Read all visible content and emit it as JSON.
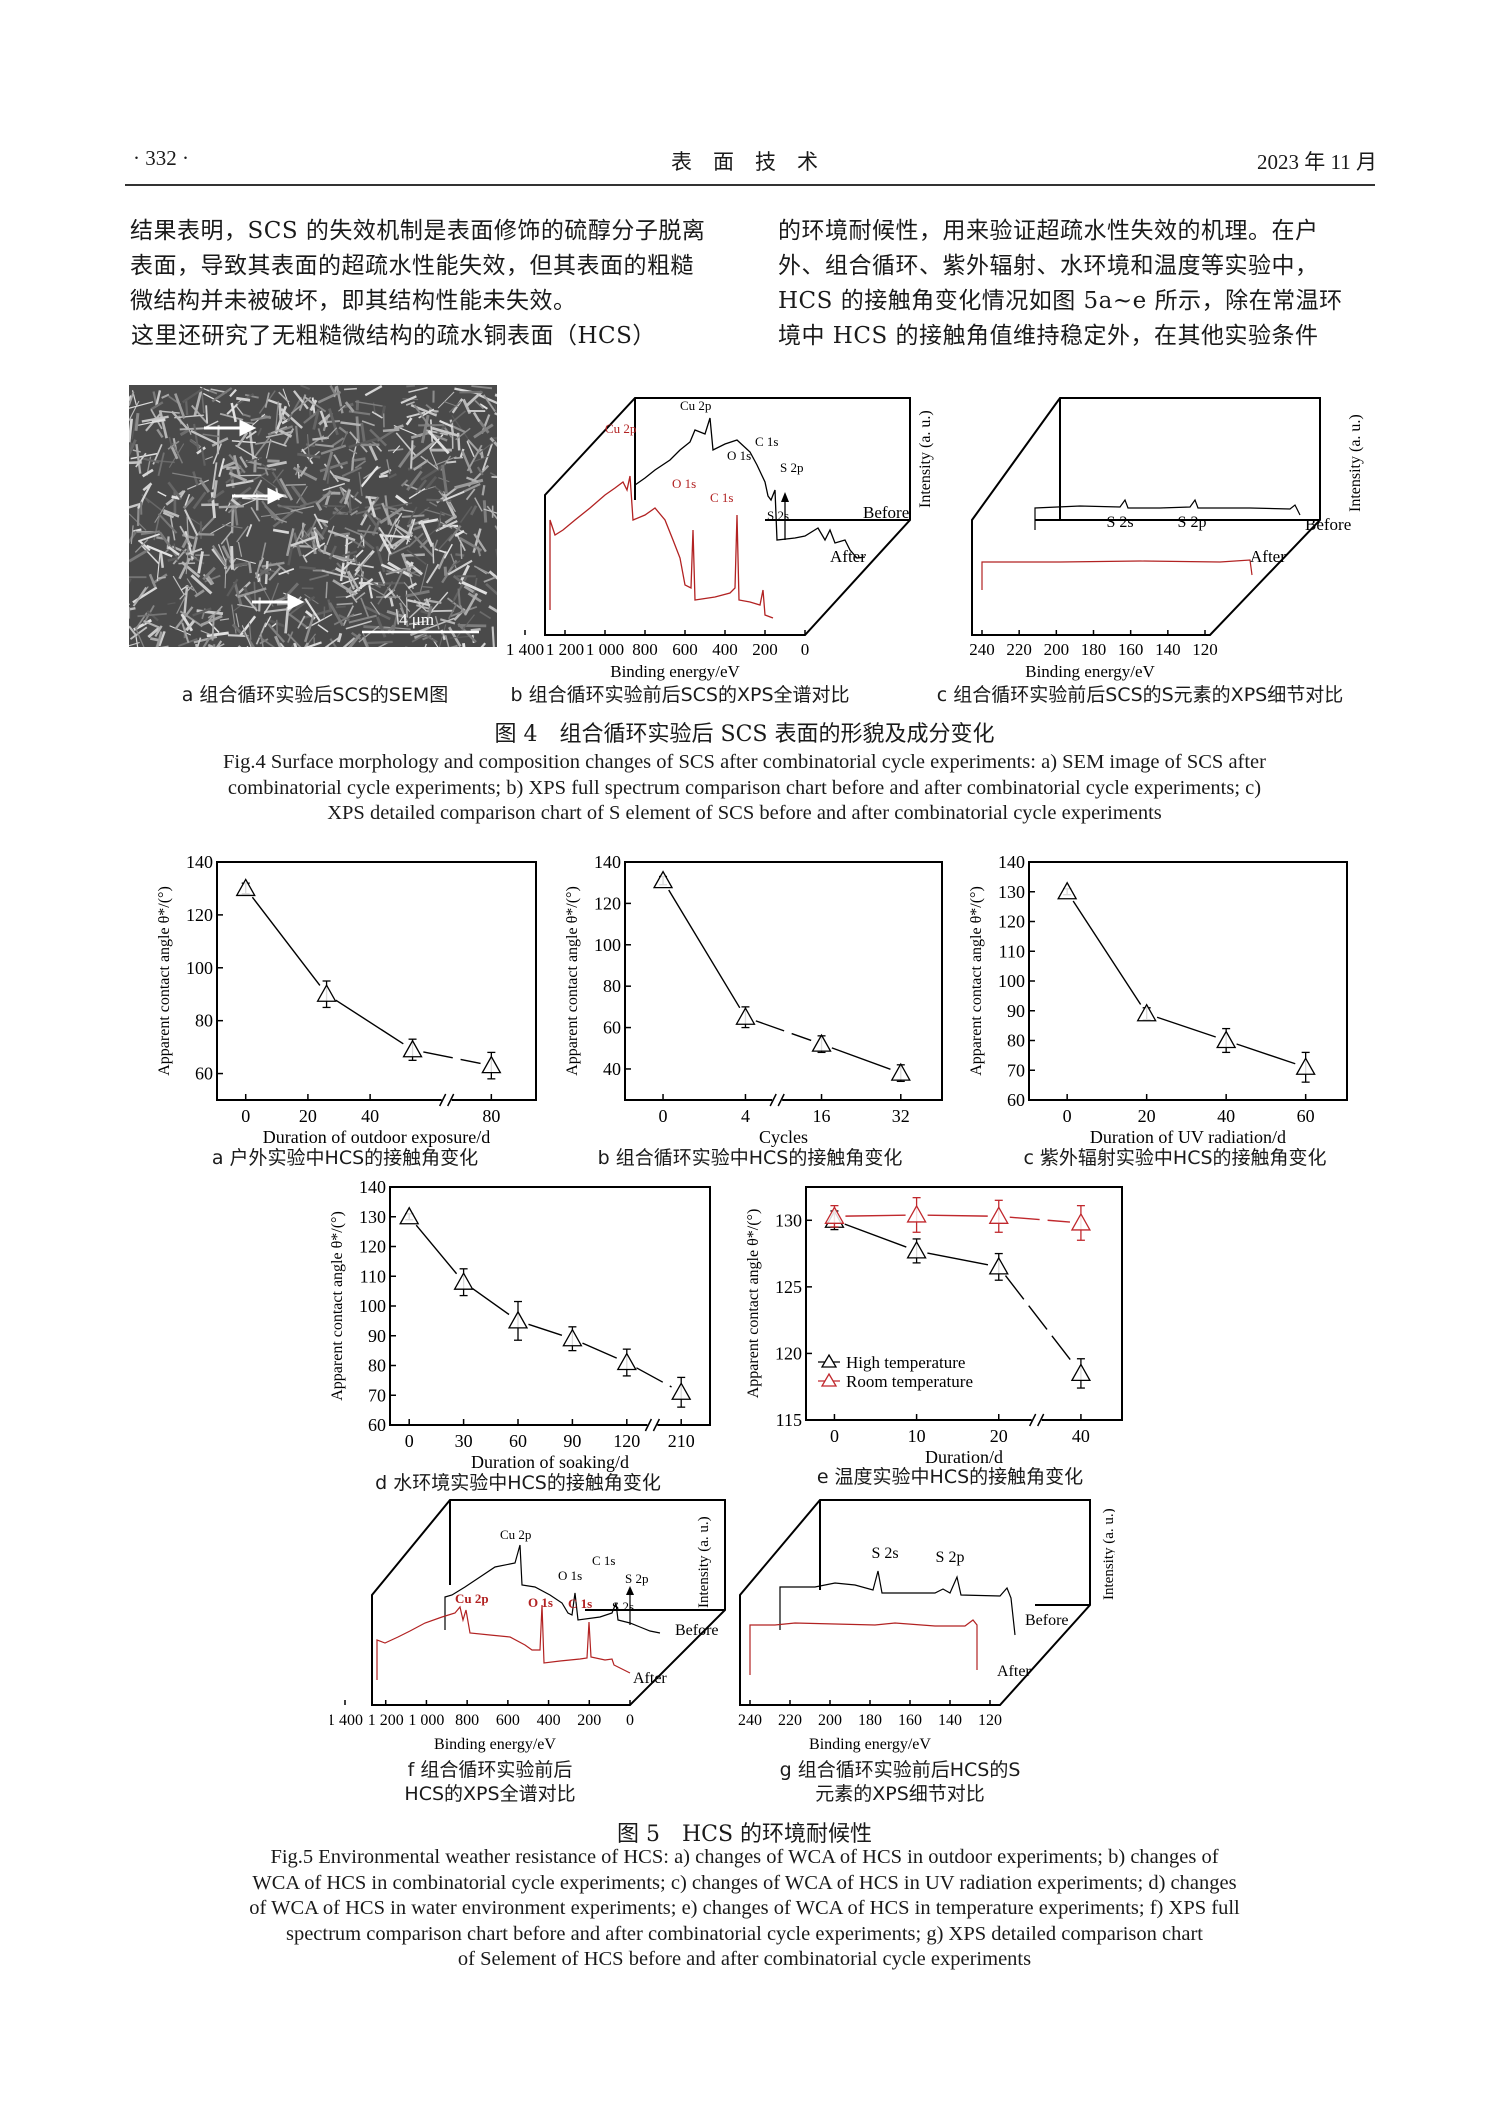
{
  "header": {
    "page_number": "· 332 ·",
    "journal": "表　面　技　术",
    "date": "2023 年 11 月"
  },
  "body": {
    "left_lines": [
      "结果表明，SCS 的失效机制是表面修饰的硫醇分子脱离",
      "表面，导致其表面的超疏水性能失效，但其表面的粗糙",
      "微结构并未被破坏，即其结构性能未失效。",
      "　　这里还研究了无粗糙微结构的疏水铜表面（HCS）"
    ],
    "right_lines": [
      "的环境耐候性，用来验证超疏水性失效的机理。在户",
      "外、组合循环、紫外辐射、水环境和温度等实验中，",
      "HCS 的接触角变化情况如图 5a~e 所示，除在常温环",
      "境中 HCS 的接触角值维持稳定外，在其他实验条件"
    ]
  },
  "fig4": {
    "a": {
      "scale_bar": "4 μm",
      "caption": "a  组合循环实验后SCS的SEM图"
    },
    "b": {
      "xticks": [
        "1 400",
        "1 200",
        "1 000",
        "800",
        "600",
        "400",
        "200",
        "0"
      ],
      "xlabel": "Binding energy/eV",
      "ylabel": "Intensity (a. u.)",
      "before_peaks": [
        "Cu 2p",
        "O 1s",
        "C 1s",
        "S 2p",
        "S 2s"
      ],
      "after_peaks": [
        "Cu 2p",
        "O 1s",
        "C 1s"
      ],
      "before": "Before",
      "after": "After",
      "caption": "b  组合循环实验前后SCS的XPS全谱对比"
    },
    "c": {
      "xticks": [
        "240",
        "220",
        "200",
        "180",
        "160",
        "140",
        "120"
      ],
      "xlabel": "Binding energy/eV",
      "ylabel": "Intensity (a. u.)",
      "peaks": [
        "S 2s",
        "S 2p"
      ],
      "before": "Before",
      "after": "After",
      "caption": "c  组合循环实验前后SCS的S元素的XPS细节对比"
    },
    "title": "图 4　组合循环实验后 SCS 表面的形貌及成分变化",
    "caption_lines": [
      "Fig.4 Surface morphology and composition changes of SCS after combinatorial cycle experiments: a) SEM image of SCS after",
      "combinatorial cycle experiments; b) XPS full spectrum comparison chart before and after combinatorial cycle experiments; c)",
      "XPS detailed comparison chart of S element of SCS before and after combinatorial cycle experiments"
    ]
  },
  "chart_data": [
    {
      "type": "line",
      "panel": "a",
      "xlabel": "Duration of outdoor exposure/d",
      "ylabel": "Apparent contact angle θ*/(°)",
      "xticks": [
        0,
        20,
        40,
        80
      ],
      "axis_break": true,
      "ylim": [
        50,
        140
      ],
      "yticks": [
        60,
        80,
        100,
        120,
        140
      ],
      "series": [
        {
          "color": "#000000",
          "x": [
            0,
            26,
            54,
            80
          ],
          "y": [
            130,
            90,
            69,
            63
          ],
          "err": [
            2,
            5,
            4,
            5
          ]
        }
      ],
      "caption": "a  户外实验中HCS的接触角变化"
    },
    {
      "type": "line",
      "panel": "b",
      "xlabel": "Cycles",
      "ylabel": "Apparent contact angle θ*/(°)",
      "xticks": [
        0,
        4,
        16,
        32
      ],
      "axis_break": true,
      "ylim": [
        25,
        140
      ],
      "yticks": [
        40,
        60,
        80,
        100,
        120,
        140
      ],
      "series": [
        {
          "color": "#000000",
          "x": [
            0,
            4,
            16,
            32
          ],
          "y": [
            131,
            65,
            52,
            38
          ],
          "err": [
            2,
            5,
            4,
            4
          ]
        }
      ],
      "caption": "b  组合循环实验中HCS的接触角变化"
    },
    {
      "type": "line",
      "panel": "c",
      "xlabel": "Duration of UV radiation/d",
      "ylabel": "Apparent contact angle θ*/(°)",
      "xticks": [
        0,
        20,
        40,
        60
      ],
      "axis_break": false,
      "ylim": [
        60,
        140
      ],
      "yticks": [
        60,
        70,
        80,
        90,
        100,
        110,
        120,
        130,
        140
      ],
      "series": [
        {
          "color": "#000000",
          "x": [
            0,
            20,
            40,
            60
          ],
          "y": [
            130,
            89,
            80,
            71
          ],
          "err": [
            1,
            2,
            4,
            5
          ]
        }
      ],
      "caption": "c  紫外辐射实验中HCS的接触角变化"
    },
    {
      "type": "line",
      "panel": "d",
      "xlabel": "Duration of soaking/d",
      "ylabel": "Apparent contact angle θ*/(°)",
      "xticks": [
        0,
        30,
        60,
        90,
        120,
        210
      ],
      "axis_break": true,
      "ylim": [
        60,
        140
      ],
      "yticks": [
        60,
        70,
        80,
        90,
        100,
        110,
        120,
        130,
        140
      ],
      "series": [
        {
          "color": "#000000",
          "x": [
            0,
            30,
            60,
            90,
            120,
            210
          ],
          "y": [
            130,
            108,
            95,
            89,
            81,
            71
          ],
          "err": [
            1,
            4.5,
            6.5,
            4,
            4.5,
            5
          ]
        }
      ],
      "caption": "d  水环境实验中HCS的接触角变化"
    },
    {
      "type": "line",
      "panel": "e",
      "xlabel": "Duration/d",
      "ylabel": "Apparent contact angle θ*/(°)",
      "xticks": [
        0,
        10,
        20,
        40
      ],
      "axis_break": true,
      "ylim": [
        115,
        132.5
      ],
      "yticks": [
        115,
        120,
        125,
        130
      ],
      "legend": "bottom-left",
      "series": [
        {
          "name": "High temperature",
          "color": "#000000",
          "x": [
            0,
            10,
            20,
            40
          ],
          "y": [
            130,
            127.7,
            126.5,
            118.5
          ],
          "err": [
            0.7,
            0.9,
            1.0,
            1.1
          ]
        },
        {
          "name": "Room temperature",
          "color": "#c0282d",
          "x": [
            0,
            10,
            20,
            40
          ],
          "y": [
            130.3,
            130.4,
            130.3,
            129.8
          ],
          "err": [
            0.8,
            1.3,
            1.2,
            1.3
          ]
        }
      ],
      "caption": "e  温度实验中HCS的接触角变化"
    }
  ],
  "fig5": {
    "f": {
      "xticks": [
        "1 400",
        "1 200",
        "1 000",
        "800",
        "600",
        "400",
        "200",
        "0"
      ],
      "xlabel": "Binding energy/eV",
      "ylabel": "Intensity (a. u.)",
      "before_peaks": [
        "Cu 2p",
        "O 1s",
        "C 1s",
        "S 2p",
        "S 2s"
      ],
      "after_peaks": [
        "Cu 2p",
        "O 1s",
        "C 1s"
      ],
      "before": "Before",
      "after": "After",
      "caption_lines": [
        "f  组合循环实验前后",
        "HCS的XPS全谱对比"
      ]
    },
    "g": {
      "xticks": [
        "240",
        "220",
        "200",
        "180",
        "160",
        "140",
        "120"
      ],
      "xlabel": "Binding energy/eV",
      "ylabel": "Intensity (a. u.)",
      "peaks": [
        "S 2s",
        "S 2p"
      ],
      "before": "Before",
      "after": "After",
      "caption_lines": [
        "g  组合循环实验前后HCS的S",
        "元素的XPS细节对比"
      ]
    },
    "title": "图 5　HCS 的环境耐候性",
    "caption_lines": [
      "Fig.5 Environmental weather resistance of HCS: a) changes of WCA of HCS in outdoor experiments; b) changes of",
      "WCA of HCS in combinatorial cycle experiments; c) changes of WCA of HCS in UV radiation experiments; d) changes",
      "of WCA of HCS in water environment experiments; e) changes of WCA of HCS in temperature experiments; f) XPS full",
      "spectrum comparison chart before and after combinatorial cycle experiments; g) XPS detailed comparison chart",
      "of Selement of HCS before and after combinatorial cycle experiments"
    ]
  },
  "colors": {
    "after_spectrum": "#b22222",
    "room_temperature": "#c0282d",
    "before_spectrum": "#000000"
  }
}
